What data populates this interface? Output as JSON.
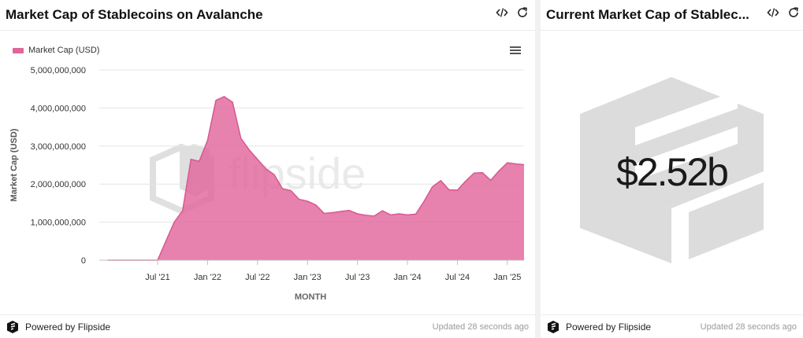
{
  "left_panel": {
    "title": "Market Cap of Stablecoins on Avalanche",
    "watermark": "flipside",
    "powered_by": "Powered by Flipside",
    "updated": "Updated 28 seconds ago",
    "icons": [
      "code-icon",
      "refresh-icon",
      "menu-icon",
      "flipside-logo-icon"
    ]
  },
  "right_panel": {
    "title": "Current Market Cap of Stablec...",
    "value": "$2.52b",
    "powered_by": "Powered by Flipside",
    "updated": "Updated 28 seconds ago",
    "icons": [
      "code-icon",
      "refresh-icon",
      "flipside-logo-icon"
    ]
  },
  "chart_data": {
    "type": "area",
    "legend": [
      "Market Cap (USD)"
    ],
    "legend_position": "top-left",
    "grid": true,
    "xlabel": "MONTH",
    "ylabel": "Market Cap (USD)",
    "ylim": [
      0,
      5000000000
    ],
    "yticks": [
      {
        "value": 0,
        "label": "0"
      },
      {
        "value": 1000000000,
        "label": "1,000,000,000"
      },
      {
        "value": 2000000000,
        "label": "2,000,000,000"
      },
      {
        "value": 3000000000,
        "label": "3,000,000,000"
      },
      {
        "value": 4000000000,
        "label": "4,000,000,000"
      },
      {
        "value": 5000000000,
        "label": "5,000,000,000"
      }
    ],
    "xlim": [
      "2020-12",
      "2025-03"
    ],
    "xticks": [
      {
        "value": "2021-07",
        "label": "Jul '21"
      },
      {
        "value": "2022-01",
        "label": "Jan '22"
      },
      {
        "value": "2022-07",
        "label": "Jul '22"
      },
      {
        "value": "2023-01",
        "label": "Jan '23"
      },
      {
        "value": "2023-07",
        "label": "Jul '23"
      },
      {
        "value": "2024-01",
        "label": "Jan '24"
      },
      {
        "value": "2024-07",
        "label": "Jul '24"
      },
      {
        "value": "2025-01",
        "label": "Jan '25"
      }
    ],
    "colors": {
      "fill": "#e0669b",
      "line": "#d9578f"
    },
    "series": [
      {
        "name": "Market Cap (USD)",
        "x": [
          "2021-01",
          "2021-02",
          "2021-03",
          "2021-04",
          "2021-05",
          "2021-06",
          "2021-07",
          "2021-08",
          "2021-09",
          "2021-10",
          "2021-11",
          "2021-12",
          "2022-01",
          "2022-02",
          "2022-03",
          "2022-04",
          "2022-05",
          "2022-06",
          "2022-07",
          "2022-08",
          "2022-09",
          "2022-10",
          "2022-11",
          "2022-12",
          "2023-01",
          "2023-02",
          "2023-03",
          "2023-04",
          "2023-05",
          "2023-06",
          "2023-07",
          "2023-08",
          "2023-09",
          "2023-10",
          "2023-11",
          "2023-12",
          "2024-01",
          "2024-02",
          "2024-03",
          "2024-04",
          "2024-05",
          "2024-06",
          "2024-07",
          "2024-08",
          "2024-09",
          "2024-10",
          "2024-11",
          "2024-12",
          "2025-01",
          "2025-02",
          "2025-03"
        ],
        "values": [
          0,
          0,
          0,
          0,
          0,
          0,
          0,
          500000000,
          1000000000,
          1300000000,
          2650000000,
          2600000000,
          3150000000,
          4200000000,
          4300000000,
          4150000000,
          3200000000,
          2900000000,
          2650000000,
          2400000000,
          2250000000,
          1880000000,
          1830000000,
          1600000000,
          1550000000,
          1450000000,
          1230000000,
          1250000000,
          1280000000,
          1310000000,
          1220000000,
          1180000000,
          1160000000,
          1300000000,
          1190000000,
          1220000000,
          1190000000,
          1210000000,
          1550000000,
          1930000000,
          2090000000,
          1850000000,
          1840000000,
          2080000000,
          2290000000,
          2300000000,
          2100000000,
          2350000000,
          2560000000,
          2530000000,
          2510000000
        ]
      }
    ]
  }
}
